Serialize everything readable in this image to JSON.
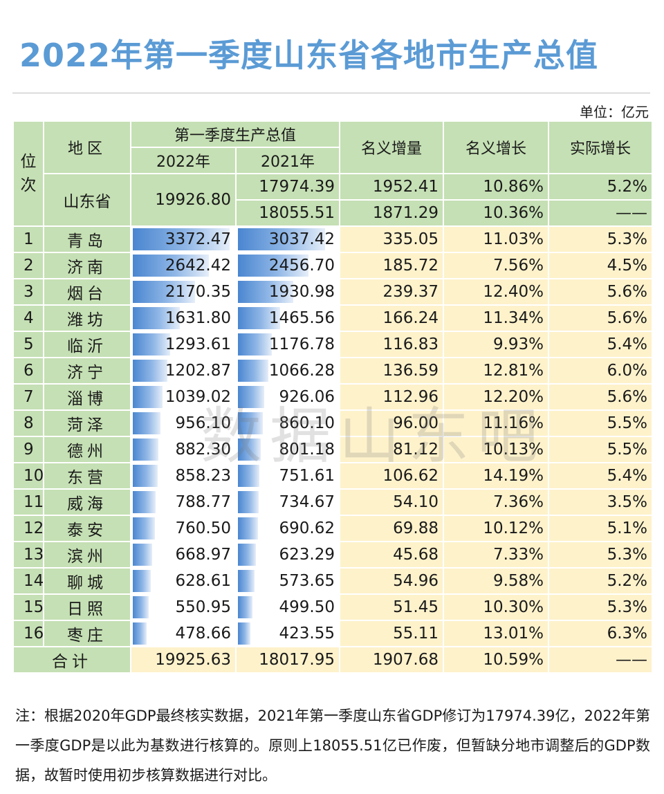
{
  "title": "2022年第一季度山东省各地市生产总值",
  "unit": "单位：亿元",
  "headers": {
    "rank": "位次",
    "region": "地区",
    "q1_gdp": "第一季度生产总值",
    "y2022": "2022年",
    "y2021": "2021年",
    "nominal_increase": "名义增量",
    "nominal_growth": "名义增长",
    "real_growth": "实际增长"
  },
  "province": {
    "name": "山东省",
    "gdp_2022": "19926.80",
    "rows": [
      {
        "gdp_2021": "17974.39",
        "increase": "1952.41",
        "nominal": "10.86%",
        "real": "5.2%"
      },
      {
        "gdp_2021": "18055.51",
        "increase": "1871.29",
        "nominal": "10.36%",
        "real": "——"
      }
    ]
  },
  "cities": [
    {
      "rank": "1",
      "name": "青岛",
      "gdp_2022": "3372.47",
      "gdp_2021": "3037.42",
      "increase": "335.05",
      "nominal": "11.03%",
      "real": "5.3%",
      "v22": 3372.47,
      "v21": 3037.42
    },
    {
      "rank": "2",
      "name": "济南",
      "gdp_2022": "2642.42",
      "gdp_2021": "2456.70",
      "increase": "185.72",
      "nominal": "7.56%",
      "real": "4.5%",
      "v22": 2642.42,
      "v21": 2456.7
    },
    {
      "rank": "3",
      "name": "烟台",
      "gdp_2022": "2170.35",
      "gdp_2021": "1930.98",
      "increase": "239.37",
      "nominal": "12.40%",
      "real": "5.6%",
      "v22": 2170.35,
      "v21": 1930.98
    },
    {
      "rank": "4",
      "name": "潍坊",
      "gdp_2022": "1631.80",
      "gdp_2021": "1465.56",
      "increase": "166.24",
      "nominal": "11.34%",
      "real": "5.6%",
      "v22": 1631.8,
      "v21": 1465.56
    },
    {
      "rank": "5",
      "name": "临沂",
      "gdp_2022": "1293.61",
      "gdp_2021": "1176.78",
      "increase": "116.83",
      "nominal": "9.93%",
      "real": "5.4%",
      "v22": 1293.61,
      "v21": 1176.78
    },
    {
      "rank": "6",
      "name": "济宁",
      "gdp_2022": "1202.87",
      "gdp_2021": "1066.28",
      "increase": "136.59",
      "nominal": "12.81%",
      "real": "6.0%",
      "v22": 1202.87,
      "v21": 1066.28
    },
    {
      "rank": "7",
      "name": "淄博",
      "gdp_2022": "1039.02",
      "gdp_2021": "926.06",
      "increase": "112.96",
      "nominal": "12.20%",
      "real": "5.6%",
      "v22": 1039.02,
      "v21": 926.06
    },
    {
      "rank": "8",
      "name": "菏泽",
      "gdp_2022": "956.10",
      "gdp_2021": "860.10",
      "increase": "96.00",
      "nominal": "11.16%",
      "real": "5.5%",
      "v22": 956.1,
      "v21": 860.1
    },
    {
      "rank": "9",
      "name": "德州",
      "gdp_2022": "882.30",
      "gdp_2021": "801.18",
      "increase": "81.12",
      "nominal": "10.13%",
      "real": "5.5%",
      "v22": 882.3,
      "v21": 801.18
    },
    {
      "rank": "10",
      "name": "东营",
      "gdp_2022": "858.23",
      "gdp_2021": "751.61",
      "increase": "106.62",
      "nominal": "14.19%",
      "real": "5.4%",
      "v22": 858.23,
      "v21": 751.61
    },
    {
      "rank": "11",
      "name": "威海",
      "gdp_2022": "788.77",
      "gdp_2021": "734.67",
      "increase": "54.10",
      "nominal": "7.36%",
      "real": "3.5%",
      "v22": 788.77,
      "v21": 734.67
    },
    {
      "rank": "12",
      "name": "泰安",
      "gdp_2022": "760.50",
      "gdp_2021": "690.62",
      "increase": "69.88",
      "nominal": "10.12%",
      "real": "5.1%",
      "v22": 760.5,
      "v21": 690.62
    },
    {
      "rank": "13",
      "name": "滨州",
      "gdp_2022": "668.97",
      "gdp_2021": "623.29",
      "increase": "45.68",
      "nominal": "7.33%",
      "real": "5.3%",
      "v22": 668.97,
      "v21": 623.29
    },
    {
      "rank": "14",
      "name": "聊城",
      "gdp_2022": "628.61",
      "gdp_2021": "573.65",
      "increase": "54.96",
      "nominal": "9.58%",
      "real": "5.2%",
      "v22": 628.61,
      "v21": 573.65
    },
    {
      "rank": "15",
      "name": "日照",
      "gdp_2022": "550.95",
      "gdp_2021": "499.50",
      "increase": "51.45",
      "nominal": "10.30%",
      "real": "5.3%",
      "v22": 550.95,
      "v21": 499.5
    },
    {
      "rank": "16",
      "name": "枣庄",
      "gdp_2022": "478.66",
      "gdp_2021": "423.55",
      "increase": "55.11",
      "nominal": "13.01%",
      "real": "6.3%",
      "v22": 478.66,
      "v21": 423.55
    }
  ],
  "total": {
    "label": "合计",
    "gdp_2022": "19925.63",
    "gdp_2021": "18017.95",
    "increase": "1907.68",
    "nominal": "10.59%",
    "real": "——"
  },
  "watermark": "数据山东吧",
  "note": "注：根据2020年GDP最终核实数据，2021年第一季度山东省GDP修订为17974.39亿，2022年第一季度GDP是以此为基数进行核算的。原则上18055.51亿已作废，但暂缺分地市调整后的GDP数据，故暂时使用初步核算数据进行对比。",
  "colors": {
    "title": "#5b9bd5",
    "header_bg": "#c5e0b4",
    "row_bg": "#fef2cb",
    "bar": "#4a86d0"
  }
}
